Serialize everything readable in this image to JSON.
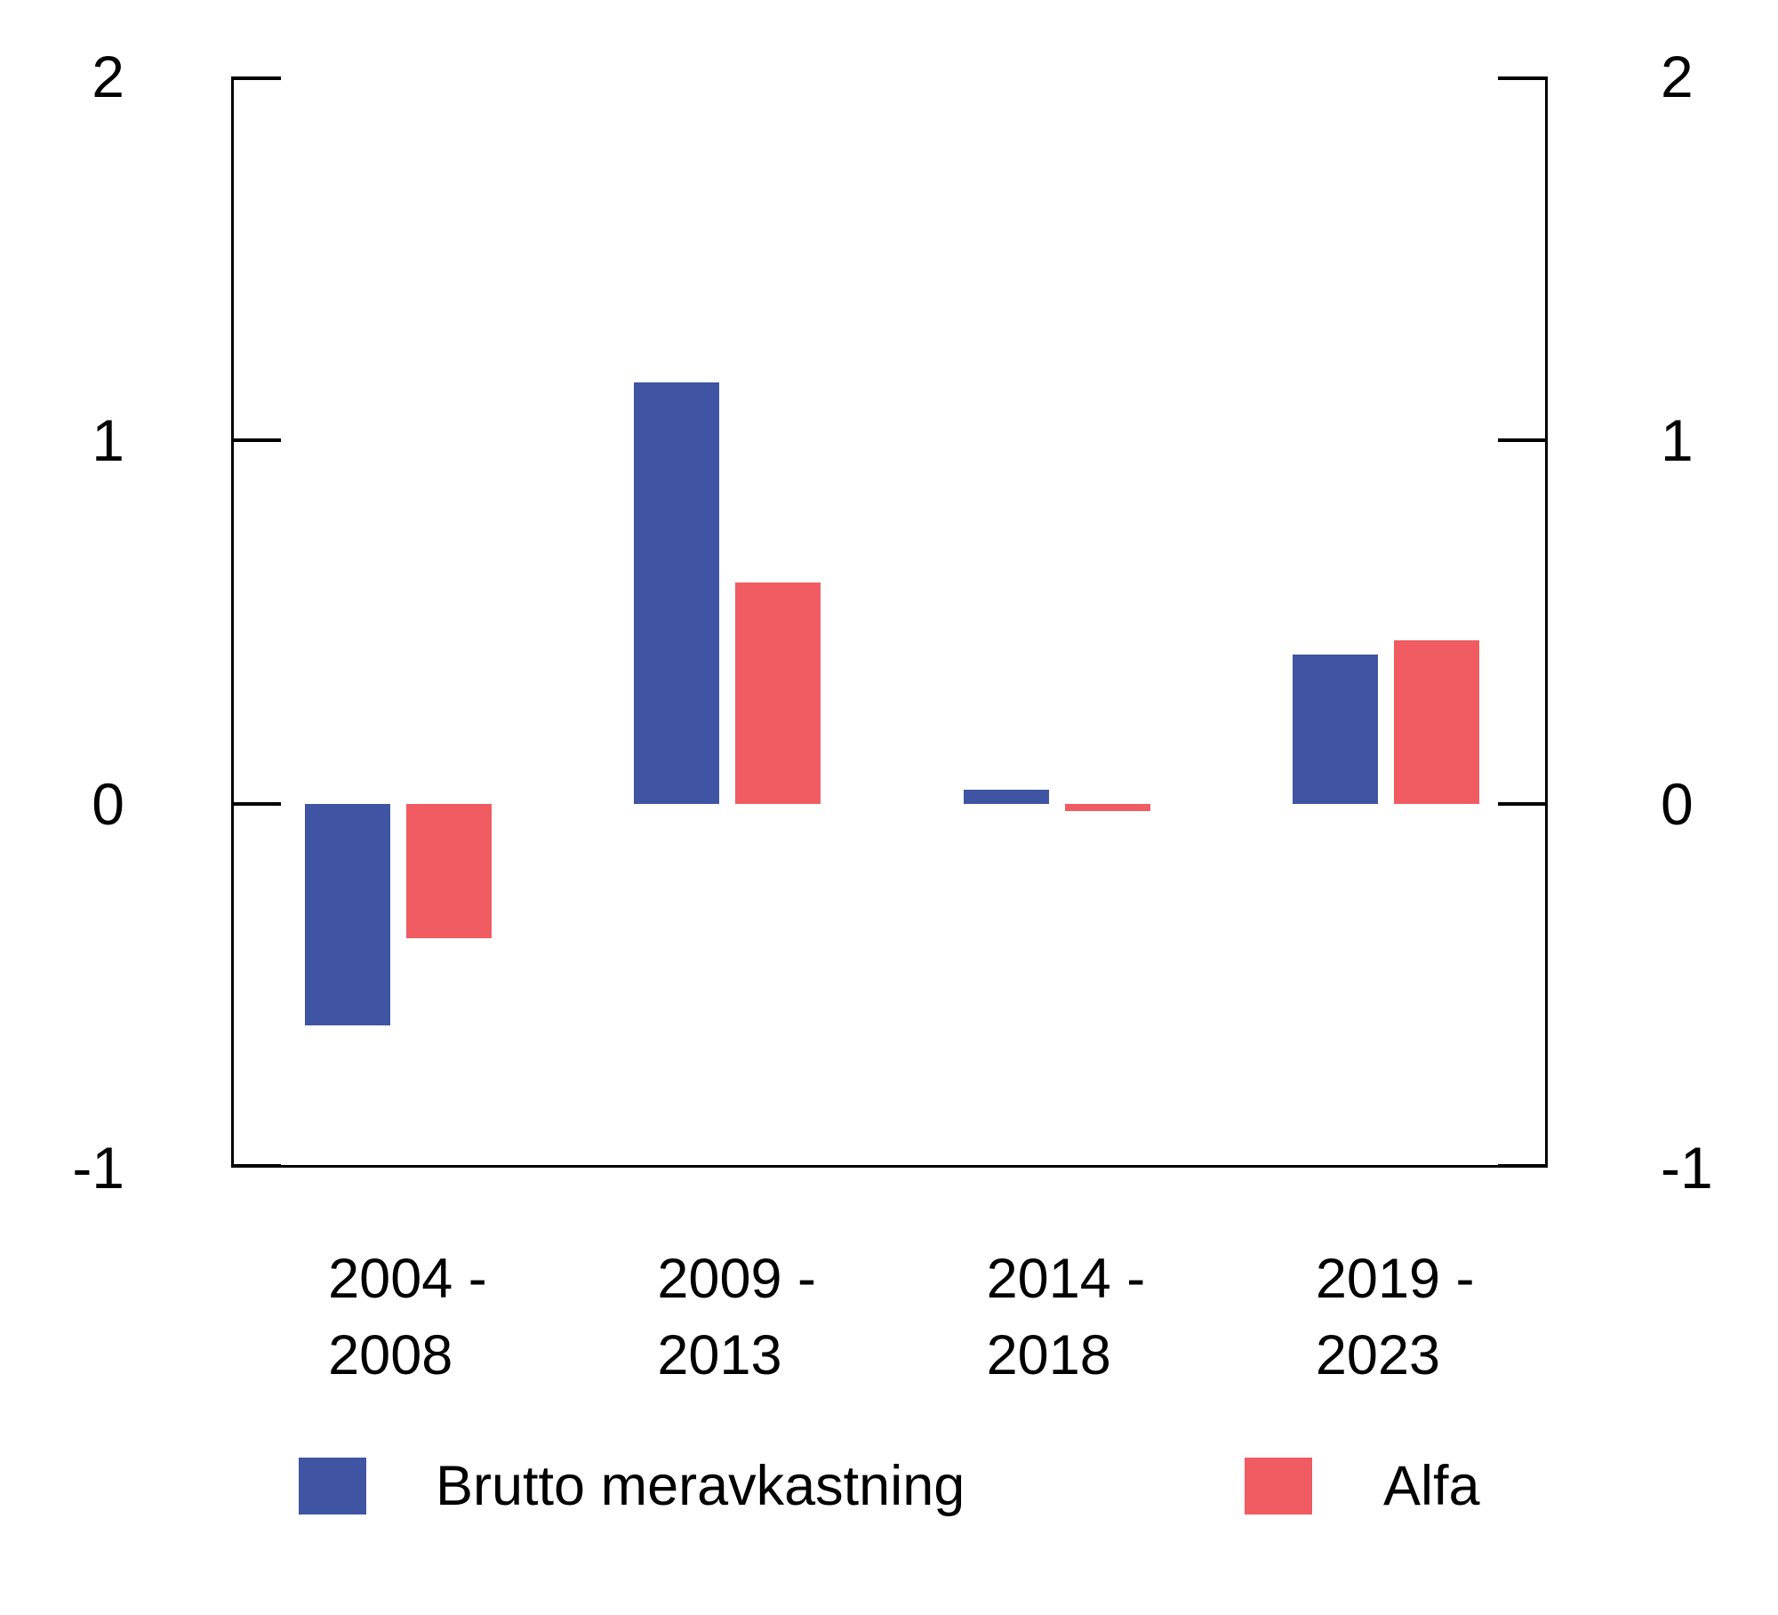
{
  "chart_data": {
    "type": "bar",
    "categories": [
      [
        "2004 -",
        "2008"
      ],
      [
        "2009 -",
        "2013"
      ],
      [
        "2014 -",
        "2018"
      ],
      [
        "2019 -",
        "2023"
      ]
    ],
    "series": [
      {
        "name": "Brutto meravkastning",
        "color": "#4054A4",
        "values": [
          -0.61,
          1.16,
          0.04,
          0.41
        ]
      },
      {
        "name": "Alfa",
        "color": "#F05C62",
        "values": [
          -0.37,
          0.61,
          -0.02,
          0.45
        ]
      }
    ],
    "ylim": [
      -1,
      2
    ],
    "yticks": [
      2,
      1,
      0,
      -1
    ],
    "ytick_labels_left": [
      "2",
      "1",
      "0",
      "-1"
    ],
    "ytick_labels_right": [
      "2",
      "1",
      "0",
      "-1"
    ],
    "grid": false,
    "legend_position": "bottom",
    "axis_color": "#000000",
    "background_color": "#FFFFFF"
  }
}
